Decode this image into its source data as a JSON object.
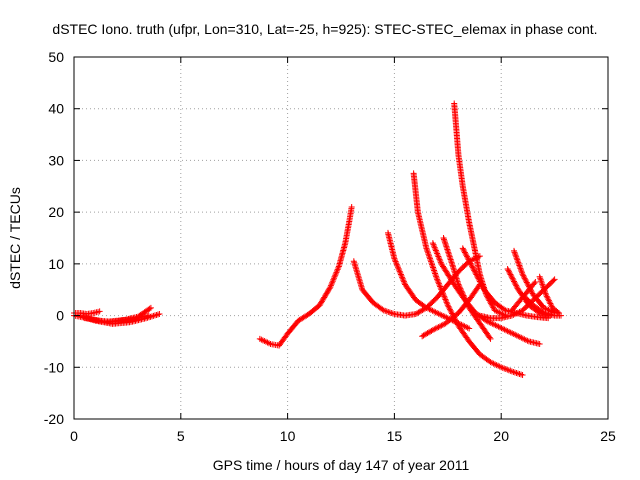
{
  "chart_data": {
    "type": "scatter",
    "title": "dSTEC Iono. truth (ufpr, Lon=310, Lat=-25, h=925): STEC-STEC_elemax in phase cont.",
    "xlabel": "GPS time / hours of day 147 of year 2011",
    "ylabel": "dSTEC  / TECUs",
    "xlim": [
      0,
      25
    ],
    "ylim": [
      -20,
      50
    ],
    "xticks": [
      "0",
      "5",
      "10",
      "15",
      "20",
      "25"
    ],
    "yticks": [
      "-20",
      "-10",
      "0",
      "10",
      "20",
      "30",
      "40",
      "50"
    ],
    "grid": true,
    "marker": "+",
    "color": "#ff0000",
    "series": [
      {
        "x": [
          0.0,
          0.3,
          0.6,
          0.9,
          1.2
        ],
        "y": [
          0.5,
          0.5,
          0.3,
          0.5,
          0.8
        ]
      },
      {
        "x": [
          0.0,
          0.6,
          1.2,
          1.8,
          2.4,
          3.0,
          3.6
        ],
        "y": [
          0.0,
          -0.5,
          -1.0,
          -1.2,
          -0.8,
          -0.2,
          1.5
        ]
      },
      {
        "x": [
          0.3,
          1.0,
          1.8,
          2.6,
          3.3,
          4.0
        ],
        "y": [
          0.0,
          -1.0,
          -1.6,
          -1.3,
          -0.6,
          0.3
        ]
      },
      {
        "x": [
          0.5,
          1.5,
          2.5,
          3.5
        ],
        "y": [
          -0.5,
          -1.2,
          -0.8,
          0.0
        ]
      },
      {
        "x": [
          8.7,
          9.2,
          9.6,
          10.0,
          10.5,
          11.0,
          11.5,
          12.0,
          12.4,
          12.7,
          12.9,
          13.0
        ],
        "y": [
          -4.5,
          -5.5,
          -5.8,
          -3.5,
          -1.0,
          0.3,
          2.0,
          5.5,
          9.5,
          14.0,
          18.5,
          21.0
        ]
      },
      {
        "x": [
          13.1,
          13.5,
          14.0,
          14.5,
          15.0,
          15.5,
          16.0,
          16.5,
          17.0,
          17.5,
          18.0,
          18.5,
          19.0
        ],
        "y": [
          10.5,
          5.0,
          2.5,
          1.0,
          0.3,
          0.0,
          0.3,
          1.5,
          3.5,
          6.0,
          8.5,
          10.5,
          11.5
        ]
      },
      {
        "x": [
          14.7,
          15.0,
          15.5,
          16.0,
          16.5,
          17.0,
          17.5,
          18.0,
          18.5
        ],
        "y": [
          16.0,
          11.0,
          6.0,
          3.0,
          1.5,
          0.5,
          -0.5,
          -1.5,
          -2.5
        ]
      },
      {
        "x": [
          15.9,
          16.1,
          16.5,
          17.0,
          17.5,
          18.0,
          18.5,
          19.0,
          19.5,
          20.0,
          20.5,
          21.0
        ],
        "y": [
          27.5,
          20.0,
          13.0,
          7.0,
          2.0,
          -2.0,
          -5.0,
          -7.5,
          -9.0,
          -10.0,
          -10.8,
          -11.5
        ]
      },
      {
        "x": [
          16.3,
          16.8,
          17.4,
          18.0,
          18.5,
          19.0
        ],
        "y": [
          -4.0,
          -2.8,
          -1.5,
          0.5,
          3.0,
          6.0
        ]
      },
      {
        "x": [
          16.8,
          17.2,
          17.8,
          18.3,
          18.8,
          19.3,
          19.8,
          20.3,
          20.8,
          21.3,
          21.8
        ],
        "y": [
          14.0,
          10.0,
          6.0,
          3.0,
          0.5,
          -1.0,
          -2.0,
          -3.0,
          -4.0,
          -5.0,
          -5.5
        ]
      },
      {
        "x": [
          17.3,
          17.7,
          18.0,
          18.5,
          19.0,
          19.5
        ],
        "y": [
          15.0,
          10.0,
          6.0,
          1.5,
          -1.5,
          -4.5
        ]
      },
      {
        "x": [
          17.8,
          17.9,
          18.0,
          18.2,
          18.5,
          18.8,
          19.0,
          19.3,
          19.7,
          20.2
        ],
        "y": [
          41.0,
          36.0,
          31.0,
          25.0,
          18.0,
          12.0,
          8.0,
          4.0,
          1.0,
          0.0
        ]
      },
      {
        "x": [
          18.2,
          18.7,
          19.2,
          19.7,
          20.2,
          20.7,
          21.2,
          21.7,
          22.2
        ],
        "y": [
          13.0,
          9.0,
          5.0,
          2.5,
          1.0,
          0.5,
          0.0,
          -0.3,
          -0.5
        ]
      },
      {
        "x": [
          19.0,
          19.5,
          20.0,
          20.5,
          21.0,
          21.5,
          22.0,
          22.5
        ],
        "y": [
          0.0,
          -0.5,
          -0.5,
          0.0,
          1.0,
          3.0,
          5.0,
          7.0
        ]
      },
      {
        "x": [
          20.3,
          20.8,
          21.3,
          21.8,
          22.3
        ],
        "y": [
          9.0,
          5.0,
          2.0,
          0.5,
          0.0
        ]
      },
      {
        "x": [
          20.6,
          21.0,
          21.5,
          22.0,
          22.5
        ],
        "y": [
          12.5,
          8.0,
          4.0,
          1.5,
          0.5
        ]
      },
      {
        "x": [
          20.5,
          20.9,
          21.3,
          21.6
        ],
        "y": [
          1.0,
          3.0,
          5.0,
          6.5
        ]
      },
      {
        "x": [
          21.0,
          21.5,
          22.0,
          22.5,
          22.8
        ],
        "y": [
          4.0,
          2.0,
          0.5,
          0.0,
          0.0
        ]
      },
      {
        "x": [
          21.8,
          22.1,
          22.4,
          22.7
        ],
        "y": [
          7.5,
          4.0,
          1.5,
          0.5
        ]
      }
    ]
  }
}
